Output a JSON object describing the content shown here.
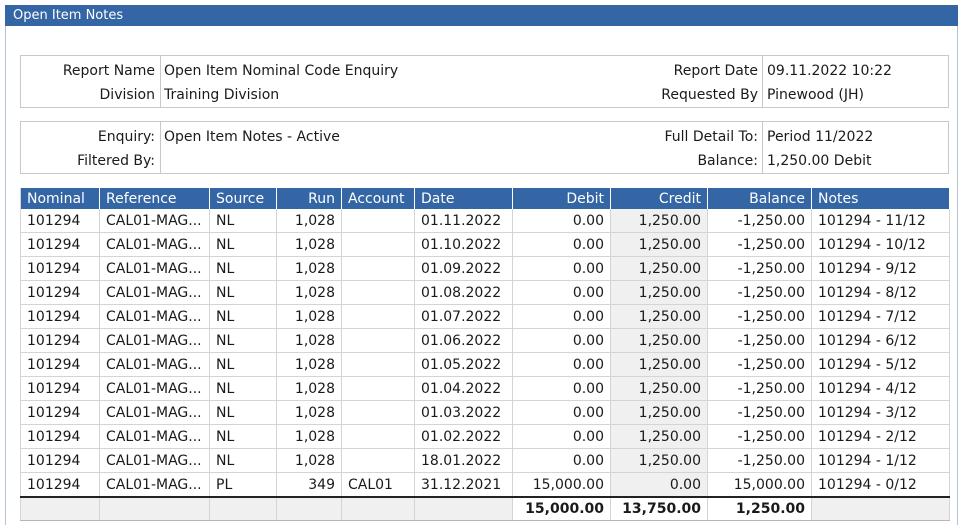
{
  "window": {
    "title": "Open Item Notes"
  },
  "report": {
    "report_name_label": "Report Name",
    "report_name": "Open Item Nominal Code Enquiry",
    "division_label": "Division",
    "division": "Training Division",
    "report_date_label": "Report Date",
    "report_date": "09.11.2022 10:22",
    "requested_by_label": "Requested By",
    "requested_by": "Pinewood (JH)"
  },
  "enquiry": {
    "enquiry_label": "Enquiry:",
    "enquiry": "Open Item Notes - Active",
    "filtered_by_label": "Filtered By:",
    "filtered_by": "",
    "full_detail_label": "Full Detail To:",
    "full_detail": "Period 11/2022",
    "balance_label": "Balance:",
    "balance": "1,250.00 Debit"
  },
  "table": {
    "columns": [
      "Nominal",
      "Reference",
      "Source",
      "Run",
      "Account",
      "Date",
      "Debit",
      "Credit",
      "Balance",
      "Notes"
    ],
    "rows": [
      [
        "101294",
        "CAL01-MAG...",
        "NL",
        "1,028",
        "",
        "01.11.2022",
        "0.00",
        "1,250.00",
        "-1,250.00",
        "101294 - 11/12"
      ],
      [
        "101294",
        "CAL01-MAG...",
        "NL",
        "1,028",
        "",
        "01.10.2022",
        "0.00",
        "1,250.00",
        "-1,250.00",
        "101294 - 10/12"
      ],
      [
        "101294",
        "CAL01-MAG...",
        "NL",
        "1,028",
        "",
        "01.09.2022",
        "0.00",
        "1,250.00",
        "-1,250.00",
        "101294 - 9/12"
      ],
      [
        "101294",
        "CAL01-MAG...",
        "NL",
        "1,028",
        "",
        "01.08.2022",
        "0.00",
        "1,250.00",
        "-1,250.00",
        "101294 - 8/12"
      ],
      [
        "101294",
        "CAL01-MAG...",
        "NL",
        "1,028",
        "",
        "01.07.2022",
        "0.00",
        "1,250.00",
        "-1,250.00",
        "101294 - 7/12"
      ],
      [
        "101294",
        "CAL01-MAG...",
        "NL",
        "1,028",
        "",
        "01.06.2022",
        "0.00",
        "1,250.00",
        "-1,250.00",
        "101294 - 6/12"
      ],
      [
        "101294",
        "CAL01-MAG...",
        "NL",
        "1,028",
        "",
        "01.05.2022",
        "0.00",
        "1,250.00",
        "-1,250.00",
        "101294 - 5/12"
      ],
      [
        "101294",
        "CAL01-MAG...",
        "NL",
        "1,028",
        "",
        "01.04.2022",
        "0.00",
        "1,250.00",
        "-1,250.00",
        "101294 - 4/12"
      ],
      [
        "101294",
        "CAL01-MAG...",
        "NL",
        "1,028",
        "",
        "01.03.2022",
        "0.00",
        "1,250.00",
        "-1,250.00",
        "101294 - 3/12"
      ],
      [
        "101294",
        "CAL01-MAG...",
        "NL",
        "1,028",
        "",
        "01.02.2022",
        "0.00",
        "1,250.00",
        "-1,250.00",
        "101294 - 2/12"
      ],
      [
        "101294",
        "CAL01-MAG...",
        "NL",
        "1,028",
        "",
        "18.01.2022",
        "0.00",
        "1,250.00",
        "-1,250.00",
        "101294 - 1/12"
      ],
      [
        "101294",
        "CAL01-MAG...",
        "PL",
        "349",
        "CAL01",
        "31.12.2021",
        "15,000.00",
        "0.00",
        "15,000.00",
        "101294 - 0/12"
      ]
    ],
    "totals": {
      "debit": "15,000.00",
      "credit": "13,750.00",
      "balance": "1,250.00"
    }
  }
}
